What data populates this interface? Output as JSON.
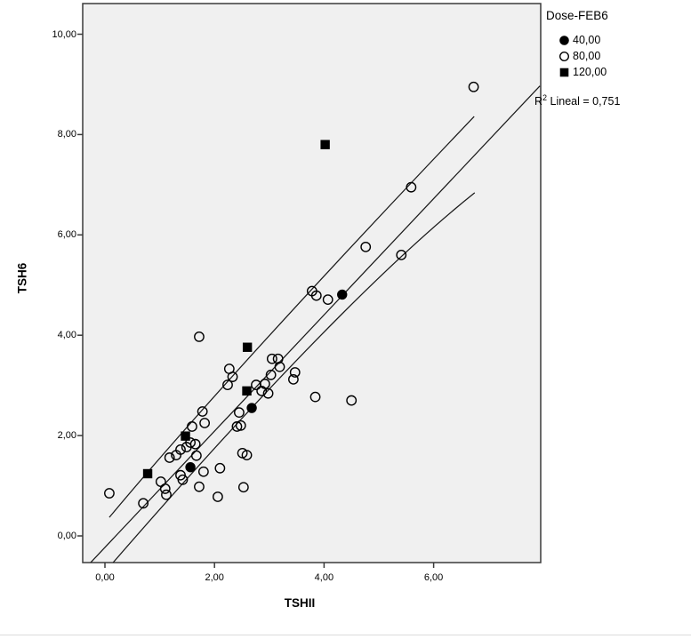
{
  "chart_data": {
    "type": "scatter",
    "title": "",
    "xlabel": "TSHII",
    "ylabel": "TSH6",
    "xlim": [
      -0.41,
      7.94
    ],
    "ylim": [
      -0.55,
      10.62
    ],
    "grid": false,
    "x_ticks": [
      {
        "value": 0,
        "label": "0,00"
      },
      {
        "value": 2,
        "label": "2,00"
      },
      {
        "value": 4,
        "label": "4,00"
      },
      {
        "value": 6,
        "label": "6,00"
      }
    ],
    "y_ticks": [
      {
        "value": 0,
        "label": "0,00"
      },
      {
        "value": 2,
        "label": "2,00"
      },
      {
        "value": 4,
        "label": "4,00"
      },
      {
        "value": 6,
        "label": "6,00"
      },
      {
        "value": 8,
        "label": "8,00"
      },
      {
        "value": 10,
        "label": "10,00"
      }
    ],
    "legend": {
      "title": "Dose-FEB6",
      "position": "top-right",
      "items": [
        {
          "label": "40,00",
          "marker": "filled-circle"
        },
        {
          "label": "80,00",
          "marker": "open-circle"
        },
        {
          "label": "120,00",
          "marker": "filled-square"
        }
      ]
    },
    "r2": {
      "base": "R",
      "sup": "2",
      "rest": " Lineal = 0,751"
    },
    "series": [
      {
        "name": "40,00",
        "marker": "filled-circle",
        "points": [
          [
            1.56,
            1.37
          ],
          [
            2.68,
            2.55
          ],
          [
            4.33,
            4.81
          ]
        ]
      },
      {
        "name": "80,00",
        "marker": "open-circle",
        "points": [
          [
            0.08,
            0.85
          ],
          [
            0.7,
            0.65
          ],
          [
            1.02,
            1.08
          ],
          [
            1.1,
            0.94
          ],
          [
            1.12,
            0.82
          ],
          [
            1.18,
            1.56
          ],
          [
            1.3,
            1.61
          ],
          [
            1.38,
            1.72
          ],
          [
            1.49,
            1.77
          ],
          [
            1.56,
            1.86
          ],
          [
            1.65,
            1.83
          ],
          [
            1.67,
            1.6
          ],
          [
            1.38,
            1.21
          ],
          [
            1.42,
            1.12
          ],
          [
            1.59,
            2.18
          ],
          [
            1.72,
            0.98
          ],
          [
            1.8,
            1.28
          ],
          [
            2.1,
            1.35
          ],
          [
            2.06,
            0.78
          ],
          [
            1.72,
            3.97
          ],
          [
            1.78,
            2.48
          ],
          [
            1.82,
            2.25
          ],
          [
            2.27,
            3.33
          ],
          [
            2.33,
            3.17
          ],
          [
            2.24,
            3.01
          ],
          [
            2.76,
            3.01
          ],
          [
            2.86,
            2.89
          ],
          [
            3.05,
            3.53
          ],
          [
            3.16,
            3.53
          ],
          [
            3.19,
            3.37
          ],
          [
            3.03,
            3.21
          ],
          [
            2.92,
            3.03
          ],
          [
            2.98,
            2.84
          ],
          [
            3.47,
            3.26
          ],
          [
            3.44,
            3.12
          ],
          [
            2.45,
            2.46
          ],
          [
            2.41,
            2.18
          ],
          [
            2.48,
            2.2
          ],
          [
            2.51,
            1.65
          ],
          [
            2.59,
            1.61
          ],
          [
            2.53,
            0.97
          ],
          [
            3.84,
            2.77
          ],
          [
            4.5,
            2.7
          ],
          [
            3.78,
            4.88
          ],
          [
            3.86,
            4.79
          ],
          [
            4.07,
            4.71
          ],
          [
            4.76,
            5.76
          ],
          [
            5.41,
            5.6
          ],
          [
            5.59,
            6.95
          ],
          [
            6.73,
            8.95
          ]
        ]
      },
      {
        "name": "120,00",
        "marker": "filled-square",
        "points": [
          [
            0.78,
            1.24
          ],
          [
            1.47,
            1.99
          ],
          [
            2.59,
            2.89
          ],
          [
            2.6,
            3.76
          ],
          [
            4.02,
            7.8
          ]
        ]
      }
    ],
    "fit_line": {
      "start": [
        -0.26,
        -0.53
      ],
      "end": [
        7.94,
        8.97
      ]
    },
    "ci_upper": {
      "start": [
        0.08,
        0.37
      ],
      "control": [
        2.29,
        3.26
      ],
      "end": [
        6.74,
        8.36
      ]
    },
    "ci_lower": {
      "start": [
        0.15,
        -0.53
      ],
      "control": [
        4.35,
        4.75
      ],
      "end": [
        6.75,
        6.84
      ]
    },
    "colors": {
      "plot_bg": "#f0f0f0",
      "border": "#3a3a3a",
      "marker": "#000000",
      "line": "#1a1a1a"
    }
  }
}
